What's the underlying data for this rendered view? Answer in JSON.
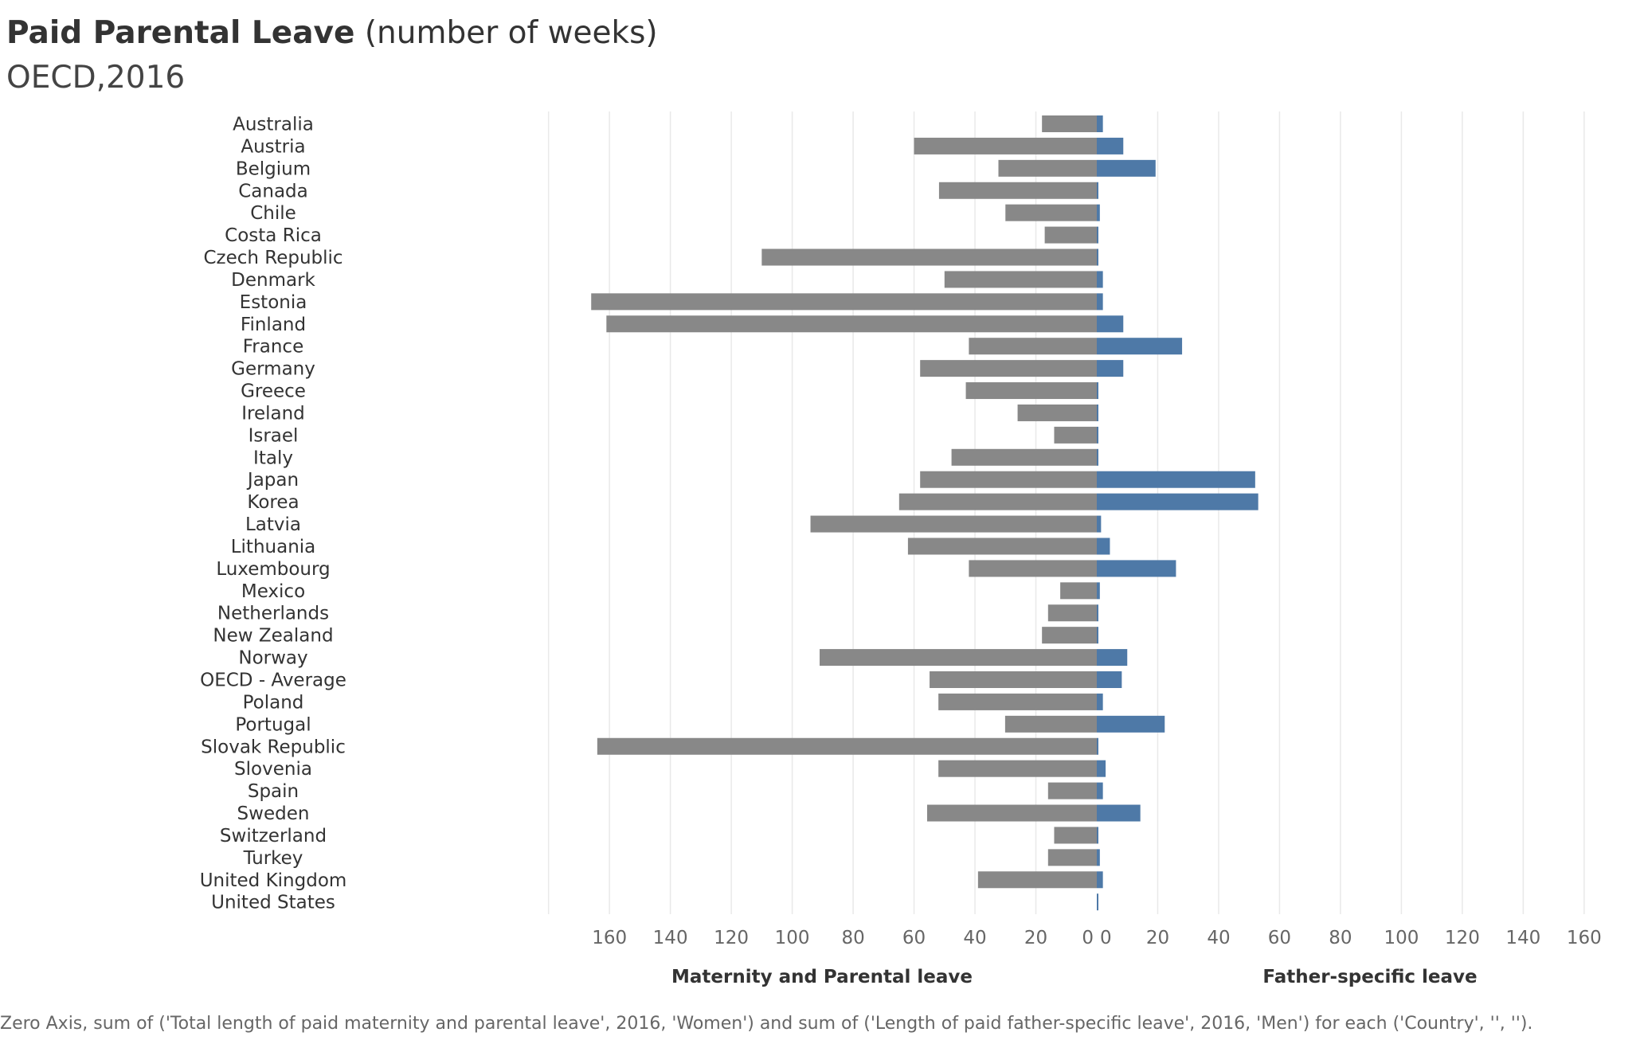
{
  "title": {
    "main": "Paid Parental Leave",
    "unit": "(number of weeks)",
    "subtitle": "OECD,2016"
  },
  "footnote": "Zero Axis, sum of ('Total length of paid maternity and parental leave', 2016, 'Women') and sum of ('Length of paid father-specific leave', 2016, 'Men') for each ('Country', '', '').",
  "colors": {
    "maternity": "#888888",
    "father": "#4e79a7",
    "grid": "#e9e9e9"
  },
  "chart_data": {
    "type": "bar",
    "orientation": "horizontal",
    "layout": "diverging",
    "grid": true,
    "legend": "none",
    "categories": [
      "Australia",
      "Austria",
      "Belgium",
      "Canada",
      "Chile",
      "Costa Rica",
      "Czech Republic",
      "Denmark",
      "Estonia",
      "Finland",
      "France",
      "Germany",
      "Greece",
      "Ireland",
      "Israel",
      "Italy",
      "Japan",
      "Korea",
      "Latvia",
      "Lithuania",
      "Luxembourg",
      "Mexico",
      "Netherlands",
      "New Zealand",
      "Norway",
      "OECD - Average",
      "Poland",
      "Portugal",
      "Slovak Republic",
      "Slovenia",
      "Spain",
      "Sweden",
      "Switzerland",
      "Turkey",
      "United Kingdom",
      "United States"
    ],
    "xlim": [
      0,
      180
    ],
    "ticks": [
      0,
      20,
      40,
      60,
      80,
      100,
      120,
      140,
      160
    ],
    "panels": [
      {
        "axis_label": "Maternity and Parental leave",
        "direction": "left",
        "values": [
          18,
          60,
          32.3,
          51.8,
          30,
          17.1,
          110,
          50,
          166,
          161,
          42,
          58,
          43,
          26,
          14,
          47.7,
          58,
          64.9,
          94,
          62,
          42,
          12,
          16,
          18,
          91,
          54.9,
          52,
          30.1,
          164,
          52,
          16,
          55.7,
          14,
          16,
          39,
          0
        ]
      },
      {
        "axis_label": "Father-specific leave",
        "direction": "right",
        "values": [
          2,
          8.7,
          19.3,
          0.5,
          1,
          0.4,
          0.4,
          2,
          2,
          8.7,
          28,
          8.7,
          0.4,
          0.4,
          0.4,
          0.4,
          52,
          53,
          1.4,
          4.3,
          26,
          1,
          0.4,
          0.4,
          10,
          8.2,
          2,
          22.3,
          0.4,
          2.9,
          2,
          14.3,
          0.2,
          1,
          2,
          0.2
        ]
      }
    ]
  }
}
